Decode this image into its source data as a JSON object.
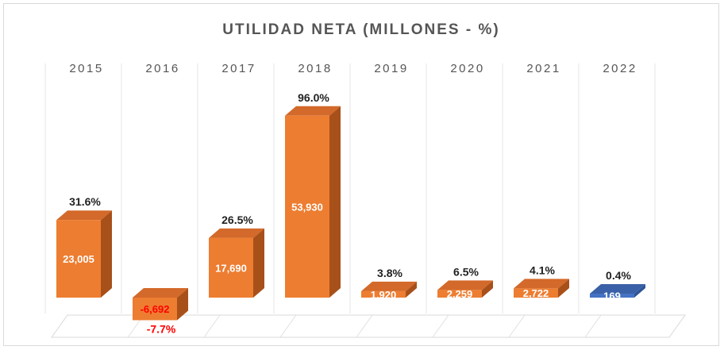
{
  "chart_data": {
    "type": "bar",
    "title": "UTILIDAD NETA (MILLONES - %)",
    "categories": [
      "2015",
      "2016",
      "2017",
      "2018",
      "2019",
      "2020",
      "2021",
      "2022"
    ],
    "series": [
      {
        "values": [
          23005,
          -6692,
          17690,
          53930,
          1920,
          2259,
          2722,
          169
        ]
      }
    ],
    "value_labels": [
      "23,005",
      "-6,692",
      "17,690",
      "53,930",
      "1,920",
      "2,259",
      "2,722",
      "169"
    ],
    "percent_labels": [
      "31.6%",
      "-7.7%",
      "26.5%",
      "96.0%",
      "3.8%",
      "6.5%",
      "4.1%",
      "0.4%"
    ],
    "colors": {
      "bar": "#ed7d31",
      "bar_side": "#a8501a",
      "bar_top": "#d3692a",
      "highlight": "#4472c4",
      "highlight_side": "#2e5597",
      "negative_text": "#ff0000",
      "text": "#222222"
    },
    "highlight_category": "2022"
  }
}
